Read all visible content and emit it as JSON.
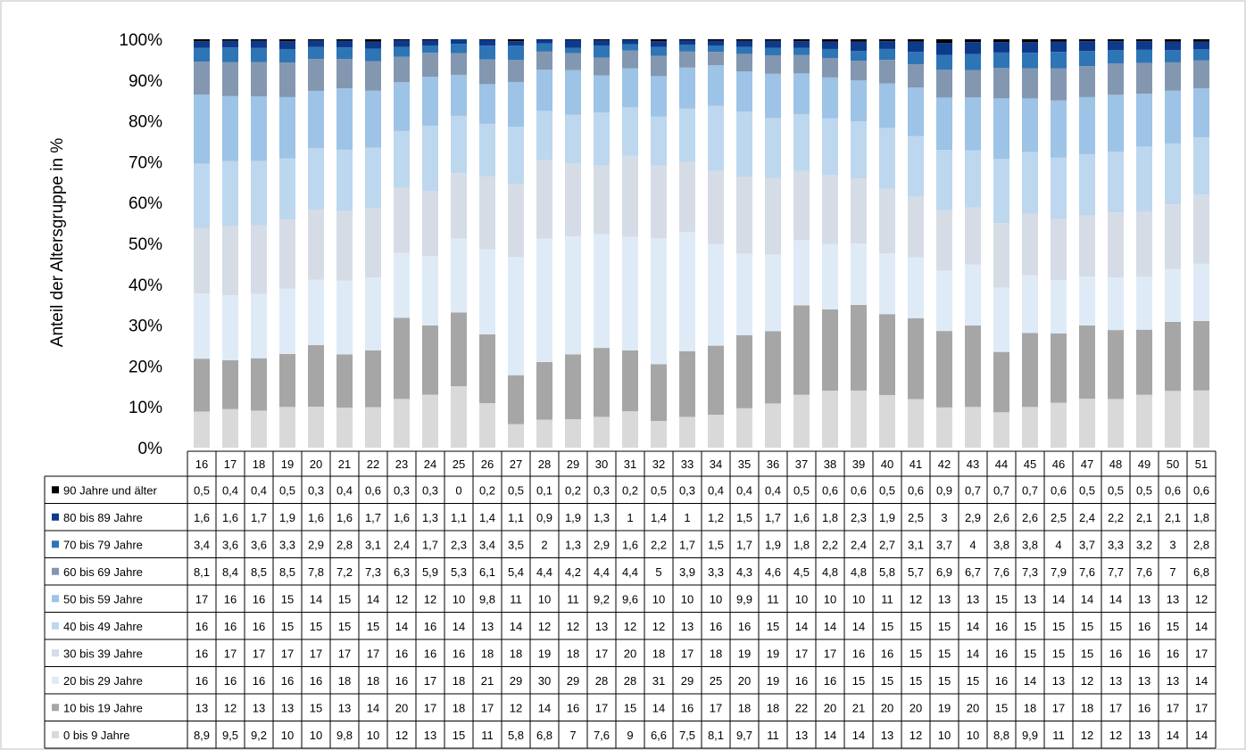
{
  "chart_data": {
    "type": "bar",
    "stacked": true,
    "percent_stacked": true,
    "ylabel": "Anteil der Altersgruppe in %",
    "yticks": [
      "0%",
      "10%",
      "20%",
      "30%",
      "40%",
      "50%",
      "60%",
      "70%",
      "80%",
      "90%",
      "100%"
    ],
    "ylim": [
      0,
      100
    ],
    "grid": false,
    "legend": "data-table-left",
    "categories": [
      "16",
      "17",
      "18",
      "19",
      "20",
      "21",
      "22",
      "23",
      "24",
      "25",
      "26",
      "27",
      "28",
      "29",
      "30",
      "31",
      "32",
      "33",
      "34",
      "35",
      "36",
      "37",
      "38",
      "39",
      "40",
      "41",
      "42",
      "43",
      "44",
      "45",
      "46",
      "47",
      "48",
      "49",
      "50",
      "51"
    ],
    "series": [
      {
        "name": "0 bis 9 Jahre",
        "color": "#d9d9d9",
        "values": [
          "8,9",
          "9,5",
          "9,2",
          "10",
          "10",
          "9,8",
          "10",
          "12",
          "13",
          "15",
          "11",
          "5,8",
          "6,8",
          "7",
          "7,6",
          "9",
          "6,6",
          "7,5",
          "8,1",
          "9,7",
          "11",
          "13",
          "14",
          "14",
          "13",
          "12",
          "10",
          "10",
          "8,8",
          "9,9",
          "11",
          "12",
          "12",
          "13",
          "14",
          "14"
        ]
      },
      {
        "name": "10 bis 19 Jahre",
        "color": "#a6a6a6",
        "values": [
          "13",
          "12",
          "13",
          "13",
          "15",
          "13",
          "14",
          "20",
          "17",
          "18",
          "17",
          "12",
          "14",
          "16",
          "17",
          "15",
          "14",
          "16",
          "17",
          "18",
          "18",
          "22",
          "20",
          "21",
          "20",
          "20",
          "19",
          "20",
          "15",
          "18",
          "17",
          "18",
          "17",
          "16",
          "17",
          "17"
        ]
      },
      {
        "name": "20 bis 29 Jahre",
        "color": "#deebf7",
        "values": [
          "16",
          "16",
          "16",
          "16",
          "16",
          "18",
          "18",
          "16",
          "17",
          "18",
          "21",
          "29",
          "30",
          "29",
          "28",
          "28",
          "31",
          "29",
          "25",
          "20",
          "19",
          "16",
          "16",
          "15",
          "15",
          "15",
          "15",
          "15",
          "16",
          "14",
          "13",
          "12",
          "13",
          "13",
          "13",
          "14"
        ]
      },
      {
        "name": "30 bis 39 Jahre",
        "color": "#d6dce5",
        "values": [
          "16",
          "17",
          "17",
          "17",
          "17",
          "17",
          "17",
          "16",
          "16",
          "16",
          "18",
          "18",
          "19",
          "18",
          "17",
          "20",
          "18",
          "17",
          "18",
          "19",
          "19",
          "17",
          "17",
          "16",
          "16",
          "15",
          "15",
          "14",
          "16",
          "15",
          "15",
          "15",
          "16",
          "16",
          "16",
          "17"
        ]
      },
      {
        "name": "40 bis 49 Jahre",
        "color": "#bdd7ee",
        "values": [
          "16",
          "16",
          "16",
          "15",
          "15",
          "15",
          "15",
          "14",
          "16",
          "14",
          "13",
          "14",
          "12",
          "12",
          "13",
          "12",
          "12",
          "13",
          "16",
          "16",
          "15",
          "14",
          "14",
          "14",
          "15",
          "15",
          "15",
          "14",
          "16",
          "15",
          "15",
          "15",
          "15",
          "16",
          "15",
          "14"
        ]
      },
      {
        "name": "50 bis 59 Jahre",
        "color": "#9dc3e6",
        "values": [
          "17",
          "16",
          "16",
          "15",
          "14",
          "15",
          "14",
          "12",
          "12",
          "10",
          "9,8",
          "11",
          "10",
          "11",
          "9,2",
          "9,6",
          "10",
          "10",
          "10",
          "9,9",
          "11",
          "10",
          "10",
          "10",
          "11",
          "12",
          "13",
          "13",
          "15",
          "13",
          "14",
          "14",
          "14",
          "13",
          "13",
          "12"
        ]
      },
      {
        "name": "60 bis 69 Jahre",
        "color": "#8497b0",
        "values": [
          "8,1",
          "8,4",
          "8,5",
          "8,5",
          "7,8",
          "7,2",
          "7,3",
          "6,3",
          "5,9",
          "5,3",
          "6,1",
          "5,4",
          "4,4",
          "4,2",
          "4,4",
          "4,4",
          "5",
          "3,9",
          "3,3",
          "4,3",
          "4,6",
          "4,5",
          "4,8",
          "4,8",
          "5,8",
          "5,7",
          "6,9",
          "6,7",
          "7,6",
          "7,3",
          "7,9",
          "7,6",
          "7,7",
          "7,6",
          "7",
          "6,8"
        ]
      },
      {
        "name": "70 bis 79 Jahre",
        "color": "#2e75b6",
        "values": [
          "3,4",
          "3,6",
          "3,6",
          "3,3",
          "2,9",
          "2,8",
          "3,1",
          "2,4",
          "1,7",
          "2,3",
          "3,4",
          "3,5",
          "2",
          "1,3",
          "2,9",
          "1,6",
          "2,2",
          "1,7",
          "1,5",
          "1,7",
          "1,9",
          "1,8",
          "2,2",
          "2,4",
          "2,7",
          "3,1",
          "3,7",
          "4",
          "3,8",
          "3,8",
          "4",
          "3,7",
          "3,3",
          "3,2",
          "3",
          "2,8"
        ]
      },
      {
        "name": "80 bis 89 Jahre",
        "color": "#0e3a8c",
        "values": [
          "1,6",
          "1,6",
          "1,7",
          "1,9",
          "1,6",
          "1,6",
          "1,7",
          "1,6",
          "1,3",
          "1,1",
          "1,4",
          "1,1",
          "0,9",
          "1,9",
          "1,3",
          "1",
          "1,4",
          "1",
          "1,2",
          "1,5",
          "1,7",
          "1,6",
          "1,8",
          "2,3",
          "1,9",
          "2,5",
          "3",
          "2,9",
          "2,6",
          "2,6",
          "2,5",
          "2,4",
          "2,2",
          "2,1",
          "2,1",
          "1,8"
        ]
      },
      {
        "name": "90 Jahre und älter",
        "color": "#000000",
        "values": [
          "0,5",
          "0,4",
          "0,4",
          "0,5",
          "0,3",
          "0,4",
          "0,6",
          "0,3",
          "0,3",
          "0",
          "0,2",
          "0,5",
          "0,1",
          "0,2",
          "0,3",
          "0,2",
          "0,5",
          "0,3",
          "0,4",
          "0,4",
          "0,4",
          "0,5",
          "0,6",
          "0,6",
          "0,5",
          "0,6",
          "0,9",
          "0,7",
          "0,7",
          "0,7",
          "0,6",
          "0,5",
          "0,5",
          "0,5",
          "0,6",
          "0,6"
        ]
      }
    ]
  }
}
